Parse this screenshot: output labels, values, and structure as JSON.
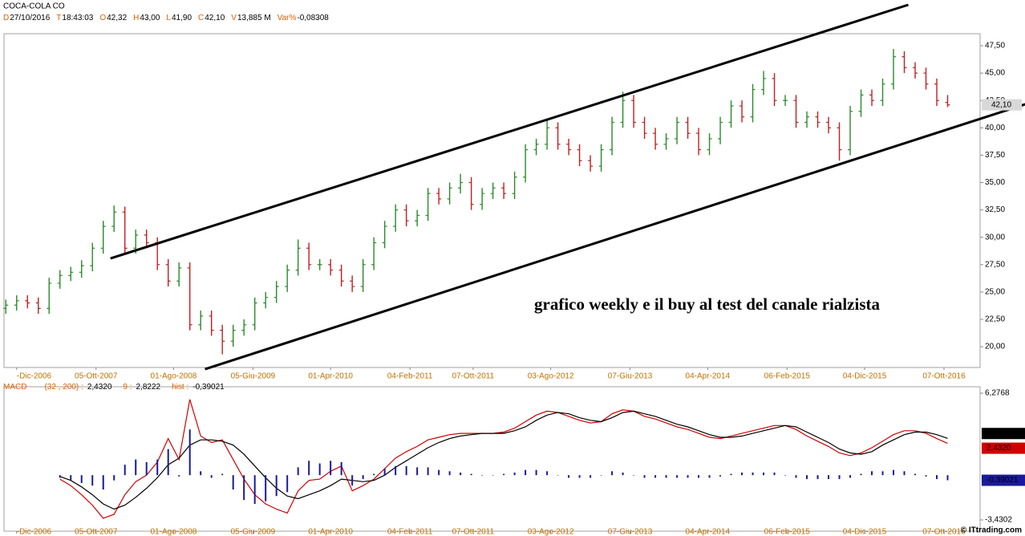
{
  "header": {
    "symbol": "COCA-COLA CO",
    "fields": [
      {
        "key": "D",
        "value": "27/10/2016"
      },
      {
        "key": "T",
        "value": "18:43:03"
      },
      {
        "key": "O",
        "value": "42,32"
      },
      {
        "key": "H",
        "value": "43,00"
      },
      {
        "key": "L",
        "value": "41,90"
      },
      {
        "key": "C",
        "value": "42,10"
      },
      {
        "key": "V",
        "value": "13,885 M"
      },
      {
        "key": "Var%",
        "value": "-0,08308"
      }
    ]
  },
  "chart_data": [
    {
      "type": "ohlc",
      "color_up": "#2a8a2a",
      "color_down": "#c02020",
      "x": [
        -6,
        0,
        6,
        12,
        18,
        24,
        30,
        36,
        42,
        48,
        54,
        60,
        66,
        72,
        78,
        84,
        90,
        96,
        102,
        108,
        114,
        120,
        126,
        132,
        138,
        144,
        150,
        156,
        162,
        168,
        174,
        180,
        186,
        192,
        198,
        204,
        210,
        216,
        222,
        228,
        234,
        240,
        246,
        252,
        258,
        264,
        270,
        276,
        282,
        288,
        294,
        300,
        306,
        312,
        318,
        324,
        330,
        336,
        342,
        348,
        354,
        360,
        366,
        372,
        378,
        384,
        390,
        396,
        402,
        408,
        414,
        420,
        426,
        432,
        438,
        444,
        450,
        456,
        462,
        468,
        474,
        480,
        486,
        492,
        498,
        504,
        510,
        516
      ],
      "open": [
        23.5,
        23.8,
        24.2,
        24.0,
        23.5,
        25.8,
        26.5,
        26.8,
        27.4,
        29.0,
        31.0,
        32.3,
        29.0,
        30.2,
        29.5,
        27.5,
        26.0,
        27.2,
        22.0,
        22.8,
        21.5,
        20.5,
        21.5,
        22.0,
        24.0,
        24.5,
        25.5,
        27.0,
        29.0,
        27.5,
        27.5,
        27.0,
        26.0,
        25.5,
        27.5,
        29.5,
        31.0,
        32.5,
        31.5,
        32.0,
        34.0,
        33.5,
        34.5,
        35.0,
        33.0,
        34.0,
        34.5,
        34.0,
        35.5,
        38.0,
        38.5,
        40.0,
        38.5,
        38.0,
        37.0,
        36.5,
        38.0,
        40.5,
        42.5,
        40.5,
        39.5,
        38.5,
        39.0,
        40.5,
        39.5,
        38.0,
        39.0,
        40.5,
        42.0,
        41.0,
        43.5,
        44.5,
        42.5,
        42.5,
        40.5,
        41.0,
        40.5,
        40.0,
        38.0,
        41.5,
        43.0,
        42.5,
        44.0,
        46.5,
        45.5,
        45.0,
        44.0,
        42.32
      ],
      "high": [
        24.3,
        24.7,
        24.7,
        24.5,
        26.3,
        27.0,
        27.3,
        27.9,
        29.5,
        31.5,
        32.9,
        32.8,
        30.7,
        30.7,
        30.0,
        28.0,
        27.7,
        27.7,
        23.3,
        23.3,
        22.0,
        22.0,
        22.5,
        24.5,
        25.0,
        26.0,
        27.5,
        29.8,
        29.5,
        28.0,
        28.0,
        27.5,
        26.5,
        28.0,
        30.0,
        31.5,
        33.0,
        33.0,
        32.5,
        34.5,
        34.5,
        35.0,
        35.8,
        35.5,
        34.5,
        35.0,
        35.0,
        36.0,
        38.5,
        39.0,
        40.8,
        40.5,
        39.0,
        38.5,
        37.5,
        38.5,
        41.0,
        43.3,
        43.0,
        41.0,
        40.0,
        39.5,
        41.0,
        41.0,
        40.0,
        39.5,
        41.0,
        42.5,
        42.5,
        44.0,
        45.2,
        45.0,
        43.0,
        43.0,
        41.5,
        41.5,
        41.0,
        40.5,
        42.0,
        43.5,
        43.5,
        44.5,
        47.2,
        47.0,
        46.0,
        45.5,
        44.5,
        43.0
      ],
      "low": [
        23.0,
        23.3,
        23.5,
        23.0,
        23.0,
        25.3,
        26.0,
        26.3,
        26.9,
        28.5,
        30.5,
        28.5,
        28.5,
        29.0,
        27.0,
        25.5,
        25.5,
        21.5,
        21.5,
        21.0,
        19.3,
        20.0,
        21.0,
        21.5,
        23.5,
        24.0,
        25.0,
        26.5,
        27.0,
        27.0,
        26.5,
        25.5,
        25.0,
        25.0,
        27.0,
        29.0,
        30.5,
        31.0,
        31.0,
        31.5,
        33.0,
        33.0,
        34.0,
        32.5,
        32.5,
        33.5,
        33.5,
        33.5,
        35.0,
        37.5,
        38.0,
        38.0,
        37.5,
        36.5,
        36.0,
        36.0,
        37.5,
        40.0,
        40.0,
        39.0,
        38.0,
        38.0,
        38.5,
        39.0,
        37.5,
        37.5,
        38.5,
        40.0,
        40.5,
        40.5,
        43.0,
        42.0,
        42.0,
        40.0,
        40.0,
        40.0,
        39.5,
        37.0,
        37.5,
        41.0,
        42.0,
        42.0,
        43.5,
        45.0,
        44.5,
        43.5,
        42.0,
        41.9
      ],
      "close": [
        23.8,
        24.2,
        24.0,
        23.5,
        25.8,
        26.5,
        26.8,
        27.4,
        29.0,
        31.0,
        32.3,
        29.0,
        30.2,
        29.5,
        27.5,
        26.0,
        27.2,
        22.0,
        22.8,
        21.5,
        20.5,
        21.5,
        22.0,
        24.0,
        24.5,
        25.5,
        27.0,
        29.0,
        27.5,
        27.5,
        27.0,
        26.0,
        25.5,
        27.5,
        29.5,
        31.0,
        32.5,
        31.5,
        32.0,
        34.0,
        33.5,
        34.5,
        35.0,
        33.0,
        34.0,
        34.5,
        34.0,
        35.5,
        38.0,
        38.5,
        40.0,
        38.5,
        38.0,
        37.0,
        36.5,
        38.0,
        40.5,
        42.5,
        40.5,
        39.5,
        38.5,
        39.0,
        40.5,
        39.5,
        38.0,
        39.0,
        40.5,
        42.0,
        41.0,
        43.5,
        44.5,
        42.5,
        42.5,
        40.5,
        41.0,
        40.5,
        40.0,
        38.0,
        41.5,
        43.0,
        42.5,
        44.0,
        46.5,
        45.5,
        45.0,
        44.0,
        42.5,
        42.1
      ],
      "last_label": {
        "value": 42.1,
        "label": "42,10"
      },
      "xlim": [
        -7,
        534
      ],
      "ylim": [
        18.1,
        48.6
      ],
      "xticks": [
        {
          "value": 0,
          "label": "-Dic-2006"
        },
        {
          "value": 44,
          "label": "05-Ott-2007"
        },
        {
          "value": 87,
          "label": "01-Ago-2008"
        },
        {
          "value": 131,
          "label": "05-Giu-2009"
        },
        {
          "value": 174,
          "label": "01-Apr-2010"
        },
        {
          "value": 218,
          "label": "04-Feb-2011"
        },
        {
          "value": 253,
          "label": "07-Ott-2011"
        },
        {
          "value": 296,
          "label": "03-Ago-2012"
        },
        {
          "value": 340,
          "label": "07-Giu-2013"
        },
        {
          "value": 383,
          "label": "04-Apr-2014"
        },
        {
          "value": 427,
          "label": "06-Feb-2015"
        },
        {
          "value": 470,
          "label": "04-Dic-2015"
        },
        {
          "value": 514,
          "label": "07-Ott-2016"
        }
      ],
      "yticks": [
        {
          "value": 20,
          "label": "20,00"
        },
        {
          "value": 22.5,
          "label": "22,50"
        },
        {
          "value": 25,
          "label": "25,00"
        },
        {
          "value": 27.5,
          "label": "27,50"
        },
        {
          "value": 30,
          "label": "30,00"
        },
        {
          "value": 32.5,
          "label": "32,50"
        },
        {
          "value": 35,
          "label": "35,00"
        },
        {
          "value": 37.5,
          "label": "37,50"
        },
        {
          "value": 40,
          "label": "40,00"
        },
        {
          "value": 42.5,
          "label": "42,50"
        },
        {
          "value": 45,
          "label": "45,00"
        },
        {
          "value": 47.5,
          "label": "47,50"
        }
      ],
      "channel_lines": [
        {
          "x": [
            52,
            494.2
          ],
          "y": [
            28.07,
            51.24
          ]
        },
        {
          "x": [
            104.4,
            559
          ],
          "y": [
            17.95,
            42.15
          ]
        }
      ],
      "annotation": "grafico weekly e il buy al test del canale rialzista"
    },
    {
      "type": "line",
      "title": "MACD",
      "x": [
        -6,
        0,
        6,
        12,
        18,
        24,
        30,
        36,
        42,
        48,
        54,
        60,
        66,
        72,
        78,
        84,
        90,
        96,
        102,
        108,
        114,
        120,
        126,
        132,
        138,
        144,
        150,
        156,
        162,
        168,
        174,
        180,
        186,
        192,
        198,
        204,
        210,
        216,
        222,
        228,
        234,
        240,
        246,
        252,
        258,
        264,
        270,
        276,
        282,
        288,
        294,
        300,
        306,
        312,
        318,
        324,
        330,
        336,
        342,
        348,
        354,
        360,
        366,
        372,
        378,
        384,
        390,
        396,
        402,
        408,
        414,
        420,
        426,
        432,
        438,
        444,
        450,
        456,
        462,
        468,
        474,
        480,
        486,
        492,
        498,
        504,
        510,
        516
      ],
      "series": [
        {
          "name": "(32 , 200) :",
          "color": "#d00000",
          "last_label": {
            "value": 2.432,
            "label": "2,4320"
          },
          "values": [
            null,
            null,
            null,
            null,
            null,
            -0.3,
            -0.8,
            -1.5,
            -2.3,
            -3.3,
            -3.0,
            -1.5,
            -0.5,
            0.0,
            1.0,
            2.8,
            1.2,
            5.8,
            3.0,
            2.5,
            2.7,
            1.2,
            -0.3,
            -1.5,
            -2.2,
            -2.6,
            -2.9,
            -1.2,
            -0.4,
            -0.3,
            0.3,
            0.7,
            -1.2,
            -0.8,
            -0.3,
            0.5,
            1.3,
            1.8,
            2.2,
            2.7,
            2.9,
            3.1,
            3.2,
            3.2,
            3.2,
            3.2,
            3.3,
            3.6,
            4.1,
            4.6,
            4.9,
            4.8,
            4.5,
            4.2,
            4.0,
            4.1,
            4.7,
            5.0,
            4.9,
            4.5,
            4.3,
            4.0,
            3.7,
            3.5,
            3.2,
            2.9,
            2.8,
            3.0,
            3.2,
            3.4,
            3.6,
            3.8,
            3.8,
            3.5,
            3.0,
            2.6,
            2.2,
            1.7,
            1.5,
            1.7,
            2.1,
            2.6,
            3.1,
            3.4,
            3.4,
            3.2,
            2.8,
            2.43
          ]
        },
        {
          "name": "9 :",
          "color": "#000000",
          "last_label": {
            "value": 2.8222,
            "label": "2,8222"
          },
          "values": [
            null,
            null,
            null,
            null,
            null,
            -0.1,
            -0.4,
            -0.9,
            -1.5,
            -2.2,
            -2.6,
            -2.3,
            -1.7,
            -1.0,
            -0.2,
            0.8,
            1.3,
            2.3,
            2.7,
            2.7,
            2.6,
            2.3,
            1.6,
            0.7,
            -0.2,
            -1.0,
            -1.6,
            -1.8,
            -1.5,
            -1.2,
            -0.8,
            -0.3,
            -0.4,
            -0.5,
            -0.4,
            0.0,
            0.6,
            1.1,
            1.6,
            2.1,
            2.5,
            2.8,
            3.0,
            3.1,
            3.2,
            3.2,
            3.2,
            3.4,
            3.7,
            4.2,
            4.6,
            4.8,
            4.7,
            4.4,
            4.2,
            4.1,
            4.4,
            4.8,
            4.9,
            4.7,
            4.5,
            4.2,
            3.9,
            3.7,
            3.4,
            3.1,
            2.9,
            2.9,
            3.0,
            3.2,
            3.4,
            3.6,
            3.8,
            3.7,
            3.3,
            2.9,
            2.5,
            2.0,
            1.7,
            1.6,
            1.8,
            2.3,
            2.7,
            3.1,
            3.3,
            3.3,
            3.1,
            2.82
          ]
        },
        {
          "name": "hist :",
          "type": "bar",
          "color": "#1a1a9a",
          "last_label": {
            "value": -0.39021,
            "label": "-0,39021"
          },
          "values": [
            null,
            null,
            null,
            null,
            null,
            -0.2,
            -0.4,
            -0.6,
            -0.8,
            -1.1,
            -0.4,
            0.8,
            1.2,
            1.0,
            1.2,
            2.0,
            -0.1,
            3.5,
            0.3,
            -0.2,
            0.1,
            -1.1,
            -1.9,
            -2.2,
            -2.0,
            -1.6,
            -1.3,
            0.6,
            1.1,
            0.9,
            1.1,
            1.0,
            -0.8,
            -0.3,
            0.1,
            0.5,
            0.7,
            0.7,
            0.6,
            0.6,
            0.4,
            0.3,
            0.2,
            0.1,
            0.0,
            0.0,
            0.1,
            0.2,
            0.4,
            0.4,
            0.3,
            0.0,
            -0.2,
            -0.2,
            -0.2,
            0.0,
            0.3,
            0.2,
            0.0,
            -0.2,
            -0.2,
            -0.2,
            -0.2,
            -0.2,
            -0.2,
            -0.2,
            -0.1,
            0.1,
            0.2,
            0.2,
            0.2,
            0.2,
            0.0,
            -0.2,
            -0.3,
            -0.3,
            -0.3,
            -0.3,
            -0.2,
            0.1,
            0.3,
            0.3,
            0.4,
            0.3,
            0.1,
            -0.1,
            -0.3,
            -0.39
          ]
        }
      ],
      "xlim": [
        -7,
        534
      ],
      "y2lim": [
        -4.29,
        6.77
      ],
      "xticks": [
        {
          "value": 0,
          "label": "-Dic-2006"
        },
        {
          "value": 44,
          "label": "05-Ott-2007"
        },
        {
          "value": 87,
          "label": "01-Ago-2008"
        },
        {
          "value": 131,
          "label": "05-Giu-2009"
        },
        {
          "value": 174,
          "label": "01-Apr-2010"
        },
        {
          "value": 218,
          "label": "04-Feb-2011"
        },
        {
          "value": 253,
          "label": "07-Ott-2011"
        },
        {
          "value": 296,
          "label": "03-Ago-2012"
        },
        {
          "value": 340,
          "label": "07-Giu-2013"
        },
        {
          "value": 383,
          "label": "04-Apr-2014"
        },
        {
          "value": 427,
          "label": "06-Feb-2015"
        },
        {
          "value": 470,
          "label": "04-Dic-2015"
        },
        {
          "value": 514,
          "label": "07-Ott-2016"
        }
      ],
      "y2ticks": [
        {
          "value": 6.2768,
          "label": "6,2768"
        },
        {
          "value": -3.4302,
          "label": "-3,4302"
        }
      ]
    }
  ],
  "footer": "© ITtrading.com"
}
